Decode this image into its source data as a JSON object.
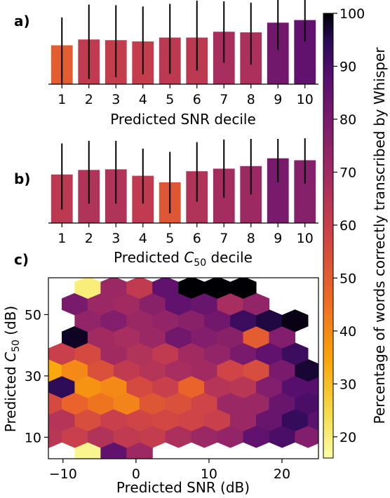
{
  "figure": {
    "panel_labels": [
      "a)",
      "b)",
      "c)"
    ]
  },
  "colorbar": {
    "label": "Percentage of words correctly transcribed by Whisper",
    "min": 16,
    "max": 100,
    "ticks": [
      "20",
      "30",
      "40",
      "50",
      "60",
      "70",
      "80",
      "90",
      "100"
    ],
    "colormap": "inferno_r"
  },
  "chart_data": [
    {
      "type": "bar",
      "panel": "a",
      "xlabel": "Predicted SNR decile",
      "categories": [
        "1",
        "2",
        "3",
        "4",
        "5",
        "6",
        "7",
        "8",
        "9",
        "10"
      ],
      "values": [
        60,
        69,
        68,
        66,
        72,
        72,
        81,
        80,
        95,
        99
      ],
      "error_low": [
        0,
        8,
        11,
        15,
        16,
        21,
        33,
        30,
        53,
        66
      ],
      "error_high": [
        103,
        123,
        122,
        120,
        124,
        129,
        128,
        126,
        130,
        130
      ],
      "ylim": [
        0,
        130
      ],
      "color_values": [
        50,
        62,
        61,
        61,
        63,
        63,
        68,
        67,
        82,
        86
      ]
    },
    {
      "type": "bar",
      "panel": "b",
      "xlabel_prefix": "Predicted ",
      "xlabel_symbol": "C",
      "xlabel_subscript": "50",
      "xlabel_suffix": " decile",
      "categories": [
        "1",
        "2",
        "3",
        "4",
        "5",
        "6",
        "7",
        "8",
        "9",
        "10"
      ],
      "values": [
        75,
        82,
        83,
        73,
        63,
        80,
        84,
        88,
        100,
        97
      ],
      "error_low": [
        21,
        30,
        30,
        30,
        15,
        33,
        39,
        44,
        63,
        61
      ],
      "error_high": [
        123,
        127,
        127,
        115,
        110,
        125,
        129,
        130,
        130,
        131
      ],
      "ylim": [
        0,
        130
      ],
      "color_values": [
        63,
        66,
        66,
        62,
        52,
        66,
        69,
        71,
        80,
        77
      ]
    },
    {
      "type": "heatmap",
      "panel": "c",
      "subtype": "hexbin",
      "xlabel": "Predicted SNR (dB)",
      "ylabel_prefix": "Predicted ",
      "ylabel_symbol": "C",
      "ylabel_subscript": "50",
      "ylabel_suffix": " (dB)",
      "xlim": [
        -12,
        25
      ],
      "ylim": [
        3,
        62
      ],
      "xticks": [
        "−10",
        "0",
        "10",
        "20"
      ],
      "xtick_values": [
        -10,
        0,
        10,
        20
      ],
      "yticks": [
        "10",
        "30",
        "50"
      ],
      "ytick_values": [
        10,
        30,
        50
      ],
      "hex_step_x": 3.55,
      "hex_step_y": 5.4,
      "hex_origin": [
        -6.6,
        4.8
      ],
      "rows": [
        {
          "row": 0,
          "cells": [
            [
              0,
              18
            ],
            [
              1,
              86
            ],
            [
              2,
              71
            ]
          ]
        },
        {
          "row": 1,
          "cells": [
            [
              -1,
              64
            ],
            [
              0,
              60
            ],
            [
              1,
              66
            ],
            [
              2,
              62
            ],
            [
              3,
              61
            ],
            [
              4,
              67
            ],
            [
              5,
              72
            ],
            [
              6,
              74
            ],
            [
              7,
              86
            ],
            [
              8,
              90
            ],
            [
              9,
              78
            ],
            [
              10,
              85
            ]
          ]
        },
        {
          "row": 2,
          "cells": [
            [
              -1,
              65
            ],
            [
              0,
              55
            ],
            [
              1,
              60
            ],
            [
              2,
              58
            ],
            [
              3,
              57
            ],
            [
              4,
              58
            ],
            [
              5,
              60
            ],
            [
              6,
              72
            ],
            [
              7,
              84
            ],
            [
              8,
              93
            ],
            [
              9,
              87
            ],
            [
              10,
              42
            ],
            [
              11,
              88
            ]
          ]
        },
        {
          "row": 3,
          "cells": [
            [
              -1,
              56
            ],
            [
              0,
              48
            ],
            [
              1,
              44
            ],
            [
              2,
              41
            ],
            [
              3,
              52
            ],
            [
              4,
              54
            ],
            [
              5,
              58
            ],
            [
              6,
              72
            ],
            [
              7,
              72
            ],
            [
              8,
              84
            ],
            [
              9,
              90
            ],
            [
              10,
              84
            ]
          ]
        },
        {
          "row": 4,
          "cells": [
            [
              -1,
              94
            ],
            [
              0,
              38
            ],
            [
              1,
              40
            ],
            [
              2,
              56
            ],
            [
              3,
              60
            ],
            [
              4,
              48
            ],
            [
              5,
              65
            ],
            [
              6,
              64
            ],
            [
              7,
              78
            ],
            [
              8,
              88
            ],
            [
              9,
              88
            ],
            [
              10,
              99
            ]
          ]
        },
        {
          "row": 5,
          "cells": [
            [
              -1,
              34
            ],
            [
              0,
              40
            ],
            [
              1,
              54
            ],
            [
              2,
              62
            ],
            [
              3,
              65
            ],
            [
              4,
              68
            ],
            [
              5,
              70
            ],
            [
              6,
              58
            ],
            [
              7,
              55
            ],
            [
              8,
              80
            ],
            [
              9,
              97
            ]
          ]
        },
        {
          "row": 6,
          "cells": [
            [
              -1,
              60
            ],
            [
              0,
              56
            ],
            [
              1,
              70
            ],
            [
              2,
              66
            ],
            [
              3,
              62
            ],
            [
              4,
              70
            ],
            [
              5,
              74
            ],
            [
              6,
              80
            ],
            [
              7,
              86
            ],
            [
              8,
              92
            ]
          ]
        },
        {
          "row": 7,
          "cells": [
            [
              0,
              98
            ],
            [
              1,
              70
            ],
            [
              2,
              68
            ],
            [
              3,
              72
            ],
            [
              4,
              82
            ],
            [
              5,
              78
            ],
            [
              6,
              76
            ],
            [
              7,
              50
            ],
            [
              8,
              78
            ]
          ]
        },
        {
          "row": 8,
          "cells": [
            [
              0,
              74
            ],
            [
              1,
              78
            ],
            [
              2,
              72
            ],
            [
              3,
              74
            ],
            [
              4,
              76
            ],
            [
              5,
              82
            ],
            [
              6,
              92
            ],
            [
              7,
              96
            ],
            [
              8,
              99
            ]
          ]
        },
        {
          "row": 9,
          "cells": [
            [
              0,
              80
            ],
            [
              1,
              72
            ],
            [
              2,
              70
            ],
            [
              3,
              76
            ],
            [
              4,
              86
            ],
            [
              5,
              84
            ],
            [
              6,
              68
            ],
            [
              7,
              74
            ]
          ]
        },
        {
          "row": 10,
          "cells": [
            [
              0,
              20
            ],
            [
              1,
              72
            ],
            [
              2,
              62
            ],
            [
              3,
              86
            ],
            [
              4,
              100
            ],
            [
              5,
              100
            ],
            [
              6,
              100
            ]
          ]
        }
      ]
    }
  ]
}
